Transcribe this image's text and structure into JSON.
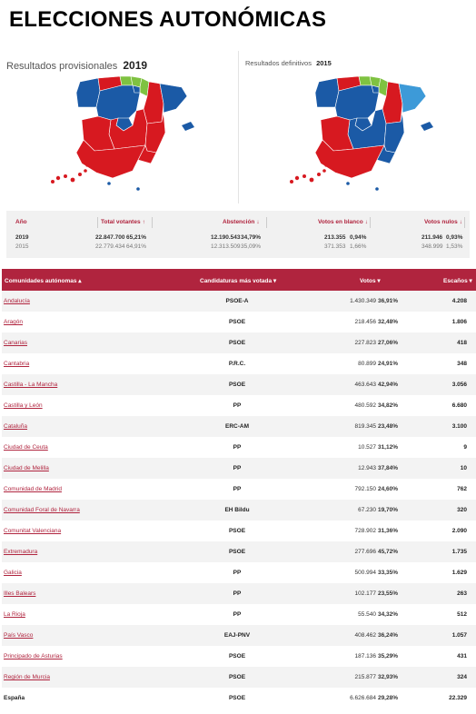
{
  "title": "ELECCIONES AUTONÓMICAS",
  "map_2019": {
    "label": "Resultados provisionales",
    "year": "2019"
  },
  "map_2015": {
    "label": "Resultados definitivos",
    "year": "2015"
  },
  "colors": {
    "psoe": "#d71920",
    "pp": "#1b5aa6",
    "green": "#7fc241",
    "catalonia_2015": "#3d9ad8",
    "accent": "#b0243e"
  },
  "summary": {
    "headers": {
      "year": "Año",
      "total": "Total votantes",
      "abst": "Abstención",
      "blank": "Votos en blanco",
      "null": "Votos nulos"
    },
    "rows": [
      {
        "year": "2019",
        "total": "22.847.700",
        "total_pct": "65,21%",
        "abst": "12.190.543",
        "abst_pct": "34,79%",
        "blank": "213.355",
        "blank_pct": "0,94%",
        "null": "211.946",
        "null_pct": "0,93%"
      },
      {
        "year": "2015",
        "total": "22.779.434",
        "total_pct": "64,91%",
        "abst": "12.313.509",
        "abst_pct": "35,09%",
        "blank": "371.353",
        "blank_pct": "1,66%",
        "null": "348.999",
        "null_pct": "1,53%"
      }
    ]
  },
  "table": {
    "headers": {
      "name": "Comunidades autónomas ▴",
      "party": "Candidaturas más votada ▾",
      "votes": "Votos ▾",
      "seats": "Escaños ▾"
    },
    "rows": [
      {
        "name": "Andalucía",
        "party": "PSOE-A",
        "votes": "1.430.349",
        "pct": "36,91%",
        "seats": "4.208"
      },
      {
        "name": "Aragón",
        "party": "PSOE",
        "votes": "218.456",
        "pct": "32,48%",
        "seats": "1.806"
      },
      {
        "name": "Canarias",
        "party": "PSOE",
        "votes": "227.823",
        "pct": "27,06%",
        "seats": "418"
      },
      {
        "name": "Cantabria",
        "party": "P.R.C.",
        "votes": "80.899",
        "pct": "24,91%",
        "seats": "348"
      },
      {
        "name": "Castilla - La Mancha",
        "party": "PSOE",
        "votes": "463.643",
        "pct": "42,94%",
        "seats": "3.056"
      },
      {
        "name": "Castilla y León",
        "party": "PP",
        "votes": "480.592",
        "pct": "34,82%",
        "seats": "6.680"
      },
      {
        "name": "Cataluña",
        "party": "ERC-AM",
        "votes": "819.345",
        "pct": "23,48%",
        "seats": "3.100"
      },
      {
        "name": "Ciudad de Ceuta",
        "party": "PP",
        "votes": "10.527",
        "pct": "31,12%",
        "seats": "9"
      },
      {
        "name": "Ciudad de Melilla",
        "party": "PP",
        "votes": "12.943",
        "pct": "37,84%",
        "seats": "10"
      },
      {
        "name": "Comunidad de Madrid",
        "party": "PP",
        "votes": "792.150",
        "pct": "24,60%",
        "seats": "762"
      },
      {
        "name": "Comunidad Foral de Navarra",
        "party": "EH Bildu",
        "votes": "67.230",
        "pct": "19,70%",
        "seats": "320"
      },
      {
        "name": "Comunitat Valenciana",
        "party": "PSOE",
        "votes": "728.902",
        "pct": "31,36%",
        "seats": "2.090"
      },
      {
        "name": "Extremadura",
        "party": "PSOE",
        "votes": "277.696",
        "pct": "45,72%",
        "seats": "1.735"
      },
      {
        "name": "Galicia",
        "party": "PP",
        "votes": "500.994",
        "pct": "33,35%",
        "seats": "1.629"
      },
      {
        "name": "Illes Balears",
        "party": "PP",
        "votes": "102.177",
        "pct": "23,55%",
        "seats": "263"
      },
      {
        "name": "La Rioja",
        "party": "PP",
        "votes": "55.540",
        "pct": "34,32%",
        "seats": "512"
      },
      {
        "name": "País Vasco",
        "party": "EAJ-PNV",
        "votes": "408.462",
        "pct": "36,24%",
        "seats": "1.057"
      },
      {
        "name": "Principado de Asturias",
        "party": "PSOE",
        "votes": "187.136",
        "pct": "35,29%",
        "seats": "431"
      },
      {
        "name": "Región de Murcia",
        "party": "PSOE",
        "votes": "215.877",
        "pct": "32,93%",
        "seats": "324"
      },
      {
        "name": "España",
        "party": "PSOE",
        "votes": "6.626.684",
        "pct": "29,28%",
        "seats": "22.329",
        "total": true
      }
    ]
  }
}
